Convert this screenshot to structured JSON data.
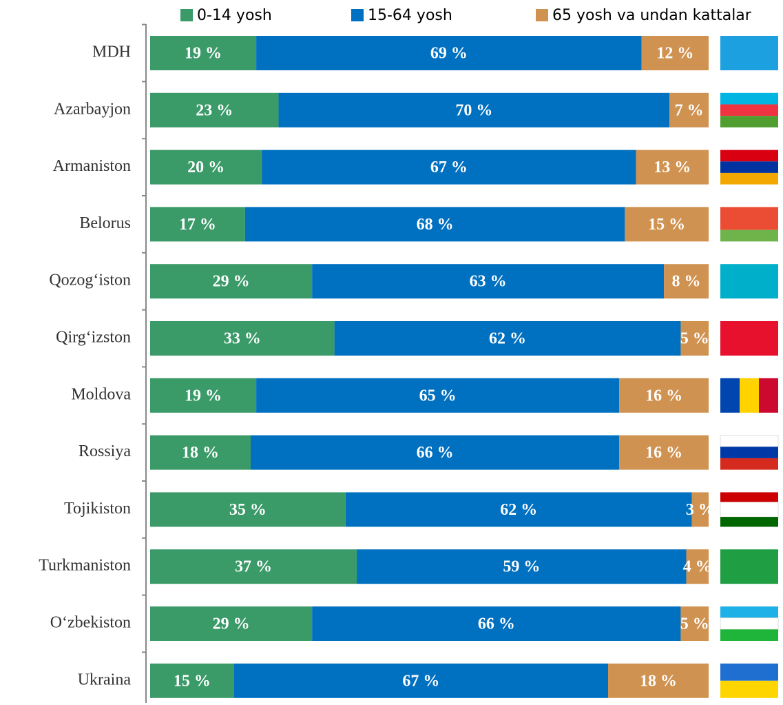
{
  "chart_data": {
    "type": "stacked-bar-horizontal",
    "categories": [
      "MDH",
      "Azarbayjon",
      "Armaniston",
      "Belorus",
      "Qozog‘iston",
      "Qirg‘izston",
      "Moldova",
      "Rossiya",
      "Tojikiston",
      "Turkmaniston",
      "O‘zbekiston",
      "Ukraina"
    ],
    "series": [
      {
        "name": "0-14 yosh",
        "color": "#3a9a68",
        "values": [
          19,
          23,
          20,
          17,
          29,
          33,
          19,
          18,
          35,
          37,
          29,
          15
        ],
        "value_labels": [
          "19 %",
          "23 %",
          "20 %",
          "17 %",
          "29 %",
          "33 %",
          "19 %",
          "18 %",
          "35 %",
          "37 %",
          "29 %",
          "15 %"
        ]
      },
      {
        "name": "15-64 yosh",
        "color": "#0070c0",
        "values": [
          69,
          70,
          67,
          68,
          63,
          62,
          65,
          66,
          62,
          59,
          66,
          67
        ],
        "value_labels": [
          "69 %",
          "70 %",
          "67 %",
          "68 %",
          "63 %",
          "62 %",
          "65 %",
          "66 %",
          "62 %",
          "59 %",
          "66 %",
          "67 %"
        ]
      },
      {
        "name": "65 yosh va undan kattalar",
        "color": "#d09250",
        "values": [
          12,
          7,
          13,
          15,
          8,
          5,
          16,
          16,
          3,
          4,
          5,
          18
        ],
        "value_labels": [
          "12 %",
          "7 %",
          "13 %",
          "15 %",
          "8 %",
          "5 %",
          "16 %",
          "16 %",
          "3 %",
          "4 %",
          "5 %",
          "18 %"
        ]
      }
    ],
    "xlim": [
      0,
      100
    ]
  }
}
